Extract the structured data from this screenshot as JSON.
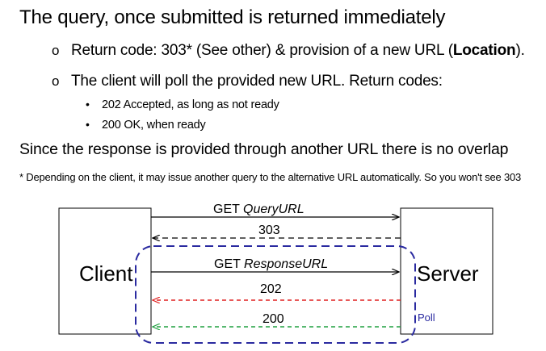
{
  "title": "The query, once submitted is returned immediately",
  "points": [
    {
      "text_before": "Return code: 303* (See other) & provision of a new URL (",
      "bold": "Location",
      "text_after": ")."
    },
    {
      "text": "The client will poll the provided new URL. Return codes:",
      "subpoints": [
        "202 Accepted, as long as not ready",
        "200 OK, when ready"
      ]
    }
  ],
  "statement": "Since the response is provided through another URL there is no overlap",
  "footnote": "* Depending on the client, it may issue another query to the alternative URL automatically. So you won't see 303",
  "diagram": {
    "client_label": "Client",
    "server_label": "Server",
    "poll_label": "Poll",
    "messages": [
      {
        "method": "GET ",
        "target": "QueryURL",
        "direction": "to-server",
        "style": "solid",
        "color": "#000000"
      },
      {
        "label": "303",
        "direction": "to-client",
        "style": "dashed",
        "color": "#000000"
      },
      {
        "method": "GET ",
        "target": "ResponseURL",
        "direction": "to-server",
        "style": "solid",
        "color": "#000000"
      },
      {
        "label": "202",
        "direction": "to-client",
        "style": "dashed",
        "color": "#e02020"
      },
      {
        "label": "200",
        "direction": "to-client",
        "style": "dashed",
        "color": "#20a040"
      }
    ],
    "loop_color": "#2a2aa0"
  }
}
